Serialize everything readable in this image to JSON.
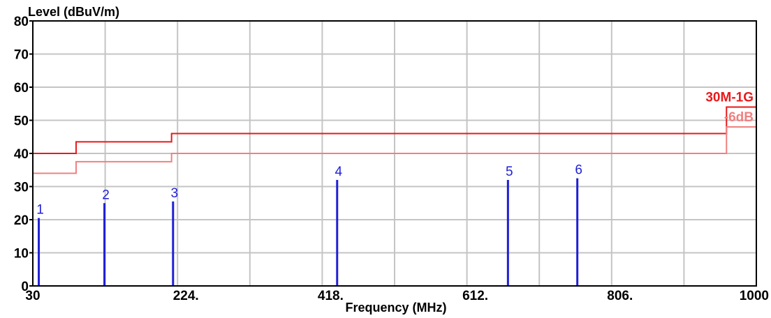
{
  "chart_data": {
    "type": "line",
    "title": "",
    "ylabel": "Level (dBuV/m)",
    "xlabel": "Frequency (MHz)",
    "xlim": [
      30,
      1000
    ],
    "ylim": [
      0,
      80
    ],
    "x_ticks": [
      30,
      224,
      418,
      612,
      806,
      1000
    ],
    "x_tick_labels": [
      "30",
      "224.",
      "418.",
      "612.",
      "806.",
      "1000"
    ],
    "x_grid": [
      30,
      127,
      224,
      321,
      418,
      515,
      612,
      709,
      806,
      903,
      1000
    ],
    "y_ticks": [
      0,
      10,
      20,
      30,
      40,
      50,
      60,
      70,
      80
    ],
    "y_tick_labels": [
      "0",
      "10",
      "20",
      "30",
      "40",
      "50",
      "60",
      "70",
      "80"
    ],
    "grid": true,
    "colors": {
      "limit": "#e8191a",
      "margin": "#f08080",
      "marker": "#1f1fd6",
      "grid": "#c4c4c4"
    },
    "series": [
      {
        "name": "30M-1G",
        "style": "limit",
        "points": [
          [
            30,
            40
          ],
          [
            88,
            40
          ],
          [
            88,
            43.5
          ],
          [
            216,
            43.5
          ],
          [
            216,
            46
          ],
          [
            960,
            46
          ],
          [
            960,
            54
          ],
          [
            1000,
            54
          ]
        ]
      },
      {
        "name": "-6dB",
        "style": "margin",
        "points": [
          [
            30,
            34
          ],
          [
            88,
            34
          ],
          [
            88,
            37.5
          ],
          [
            216,
            37.5
          ],
          [
            216,
            40
          ],
          [
            960,
            40
          ],
          [
            960,
            48
          ],
          [
            1000,
            48
          ]
        ]
      }
    ],
    "markers": [
      {
        "label": "1",
        "x": 38,
        "y": 20.5
      },
      {
        "label": "2",
        "x": 126,
        "y": 25
      },
      {
        "label": "3",
        "x": 218,
        "y": 25.5
      },
      {
        "label": "4",
        "x": 438,
        "y": 32
      },
      {
        "label": "5",
        "x": 667,
        "y": 32
      },
      {
        "label": "6",
        "x": 760,
        "y": 32.5
      }
    ]
  }
}
